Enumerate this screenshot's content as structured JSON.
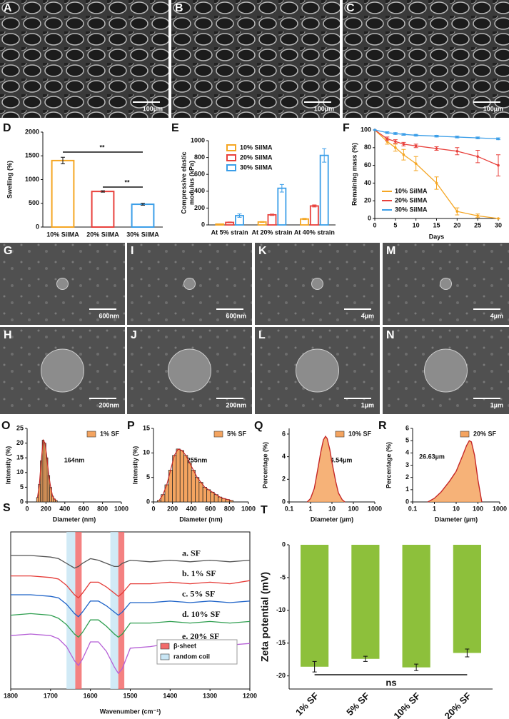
{
  "images": [
    {
      "label": "A",
      "scale": "100µm"
    },
    {
      "label": "B",
      "scale": "100µm"
    },
    {
      "label": "C",
      "scale": "100µm"
    },
    {
      "label": "G",
      "scale": "600nm"
    },
    {
      "label": "I",
      "scale": "600nm"
    },
    {
      "label": "K",
      "scale": "4µm"
    },
    {
      "label": "M",
      "scale": "4µm"
    },
    {
      "label": "H",
      "scale": "200nm"
    },
    {
      "label": "J",
      "scale": "200nm"
    },
    {
      "label": "L",
      "scale": "1µm"
    },
    {
      "label": "N",
      "scale": "1µm"
    }
  ],
  "chart_data": [
    {
      "type": "bar",
      "label": "D",
      "ylabel": "Swelling (%)",
      "categories": [
        "10% SilMA",
        "20% SilMA",
        "30% SilMA"
      ],
      "values": [
        1400,
        750,
        480
      ],
      "errors": [
        70,
        15,
        20
      ],
      "colors": [
        "#f5a623",
        "#e8413c",
        "#3b9ee8"
      ],
      "filled": false,
      "ylim": [
        0,
        2000
      ],
      "yticks": [
        0,
        500,
        1000,
        1500,
        2000
      ],
      "annotations": [
        "**",
        "**"
      ]
    },
    {
      "type": "grouped_bar",
      "label": "E",
      "ylabel": [
        "Compressive elastic",
        "modulus (kPa)"
      ],
      "categories": [
        "At 5% strain",
        "At 20% strain",
        "At 40% strain"
      ],
      "series": [
        {
          "name": "10% SilMA",
          "color": "#f5a623",
          "values": [
            10,
            35,
            70
          ],
          "errors": [
            3,
            5,
            8
          ]
        },
        {
          "name": "20% SilMA",
          "color": "#e8413c",
          "values": [
            30,
            120,
            225
          ],
          "errors": [
            5,
            8,
            12
          ]
        },
        {
          "name": "30% SilMA",
          "color": "#3b9ee8",
          "values": [
            110,
            435,
            825
          ],
          "errors": [
            20,
            45,
            80
          ]
        }
      ],
      "ylim": [
        0,
        1000
      ],
      "yticks": [
        0,
        200,
        400,
        600,
        800,
        1000
      ]
    },
    {
      "type": "line",
      "label": "F",
      "ylabel": "Remaining mass (%)",
      "xlabel": "Days",
      "x": [
        0,
        3,
        5,
        7,
        10,
        15,
        20,
        25,
        30
      ],
      "series": [
        {
          "name": "10% SilMA",
          "color": "#f5a623",
          "values": [
            100,
            87,
            80,
            72,
            62,
            40,
            8,
            3,
            0
          ],
          "errors": [
            0,
            3,
            4,
            6,
            8,
            7,
            4,
            2,
            0
          ]
        },
        {
          "name": "20% SilMA",
          "color": "#e8413c",
          "values": [
            100,
            90,
            87,
            84,
            82,
            79,
            76,
            70,
            60
          ],
          "errors": [
            0,
            2,
            2,
            2,
            2,
            2,
            4,
            7,
            12
          ]
        },
        {
          "name": "30% SilMA",
          "color": "#3b9ee8",
          "values": [
            100,
            97,
            96,
            95,
            94,
            93,
            92,
            91,
            90
          ],
          "errors": [
            0,
            1,
            1,
            1,
            1,
            1,
            1,
            1,
            1
          ]
        }
      ],
      "xlim": [
        0,
        30
      ],
      "xticks": [
        0,
        5,
        10,
        15,
        20,
        25,
        30
      ],
      "ylim": [
        0,
        100
      ],
      "yticks": [
        0,
        20,
        40,
        60,
        80,
        100
      ]
    },
    {
      "type": "histogram",
      "label": "O",
      "name": "1% SF",
      "color": "#f4a460",
      "ylabel": "Intensity (%)",
      "xlabel": "Diameter (nm)",
      "bins": [
        100,
        120,
        140,
        160,
        180,
        200,
        220,
        240,
        260,
        280,
        300,
        320
      ],
      "counts": [
        1.5,
        6,
        14,
        21,
        20,
        15,
        9,
        5,
        2,
        1,
        0.5
      ],
      "xlim": [
        0,
        1000
      ],
      "xticks": [
        0,
        200,
        400,
        600,
        800,
        1000
      ],
      "ylim": [
        0,
        25
      ],
      "yticks": [
        0,
        5,
        10,
        15,
        20,
        25
      ],
      "annotations": [
        "164nm"
      ]
    },
    {
      "type": "histogram",
      "label": "P",
      "name": "5% SF",
      "color": "#f4a460",
      "ylabel": "Intensity (%)",
      "xlabel": "Diameter (nm)",
      "bins": [
        40,
        80,
        120,
        160,
        200,
        240,
        280,
        320,
        360,
        400,
        440,
        480,
        520,
        560,
        600,
        640,
        680,
        720,
        760,
        800,
        840
      ],
      "counts": [
        0.3,
        1.5,
        3.5,
        6.5,
        9.5,
        10.8,
        10.5,
        9.5,
        8,
        6.5,
        5,
        4,
        3,
        2.5,
        2,
        1.5,
        1,
        0.7,
        0.5,
        0.3
      ],
      "xlim": [
        0,
        1000
      ],
      "xticks": [
        0,
        200,
        400,
        600,
        800,
        1000
      ],
      "ylim": [
        0,
        15
      ],
      "yticks": [
        0,
        5,
        10,
        15
      ],
      "annotations": [
        "255nm"
      ]
    },
    {
      "type": "area",
      "label": "Q",
      "name": "10% SF",
      "color": "#f4a460",
      "ylabel": "Percentage (%)",
      "xlabel": "Diameter (µm)",
      "log_x": true,
      "x": [
        0.7,
        1,
        1.5,
        2,
        3,
        4,
        5,
        6,
        8,
        10,
        15,
        20,
        30,
        40
      ],
      "values": [
        0,
        0.3,
        1.2,
        2.5,
        4.4,
        5.5,
        5.8,
        5.6,
        4.6,
        3.5,
        1.8,
        0.8,
        0.2,
        0
      ],
      "xlim": [
        0.1,
        1000
      ],
      "xticks": [
        0.1,
        1,
        10,
        100,
        1000
      ],
      "ylim": [
        0,
        6.5
      ],
      "yticks": [
        0,
        2,
        4,
        6
      ],
      "annotations": [
        "4.54µm"
      ]
    },
    {
      "type": "area",
      "label": "R",
      "name": "20% SF",
      "color": "#f4a460",
      "ylabel": "Percentage (%)",
      "xlabel": "Diameter (µm)",
      "log_x": true,
      "x": [
        0.5,
        1,
        2,
        3,
        5,
        10,
        20,
        30,
        40,
        50,
        70,
        100,
        150
      ],
      "values": [
        0,
        0.3,
        0.8,
        1.2,
        1.7,
        2.5,
        3.8,
        4.6,
        5,
        4.9,
        3.8,
        1.8,
        0
      ],
      "xlim": [
        0.1,
        1000
      ],
      "xticks": [
        0.1,
        1,
        10,
        100,
        1000
      ],
      "ylim": [
        0,
        6
      ],
      "yticks": [
        0,
        1,
        2,
        3,
        4,
        5,
        6
      ],
      "annotations": [
        "26.63µm"
      ]
    },
    {
      "type": "line",
      "label": "S",
      "xlabel": "Wavenumber (cm⁻¹)",
      "x": [
        1800,
        1750,
        1700,
        1680,
        1660,
        1640,
        1630,
        1620,
        1600,
        1580,
        1560,
        1540,
        1530,
        1520,
        1500,
        1450,
        1400,
        1350,
        1300,
        1250,
        1200
      ],
      "series": [
        {
          "name": "a. SF",
          "color": "#555555",
          "values": [
            85,
            85,
            84,
            83,
            80,
            77,
            78,
            80,
            83,
            82,
            80,
            78,
            78,
            80,
            82,
            81,
            82,
            81,
            82,
            81,
            82
          ]
        },
        {
          "name": "b. 1% SF",
          "color": "#e53935",
          "values": [
            72,
            72,
            71,
            70,
            66,
            60,
            58,
            61,
            68,
            68,
            65,
            61,
            59,
            61,
            67,
            67,
            68,
            67,
            68,
            67,
            69
          ]
        },
        {
          "name": "c. 5% SF",
          "color": "#1e63c8",
          "values": [
            60,
            60,
            59,
            58,
            54,
            48,
            46,
            49,
            56,
            56,
            53,
            49,
            47,
            49,
            55,
            55,
            56,
            55,
            56,
            55,
            56
          ]
        },
        {
          "name": "d. 10% SF",
          "color": "#2e9e4f",
          "values": [
            47,
            48,
            47,
            45,
            41,
            35,
            33,
            36,
            44,
            44,
            40,
            35,
            33,
            35,
            42,
            42,
            43,
            42,
            43,
            42,
            43
          ]
        },
        {
          "name": "e. 20% SF",
          "color": "#b55fd6",
          "values": [
            34,
            35,
            34,
            32,
            27,
            18,
            15,
            19,
            30,
            30,
            24,
            14,
            10,
            13,
            26,
            27,
            29,
            28,
            29,
            28,
            29
          ]
        }
      ],
      "bands": [
        {
          "name": "β-sheet",
          "color": "#f26b6b",
          "ranges": [
            [
              1638,
              1622
            ],
            [
              1530,
              1515
            ]
          ]
        },
        {
          "name": "random coil",
          "color": "#c9e6f5",
          "ranges": [
            [
              1660,
              1638
            ],
            [
              1550,
              1530
            ]
          ]
        }
      ],
      "xlim": [
        1800,
        1200
      ],
      "xticks": [
        1800,
        1700,
        1600,
        1500,
        1400,
        1300,
        1200
      ],
      "ylim": [
        0,
        100
      ]
    },
    {
      "type": "bar",
      "label": "T",
      "ylabel": "Zeta potential (mV)",
      "categories": [
        "1% SF",
        "5% SF",
        "10% SF",
        "20% SF"
      ],
      "values": [
        -18.6,
        -17.4,
        -18.7,
        -16.5
      ],
      "errors": [
        0.8,
        0.4,
        0.5,
        0.6
      ],
      "colors": [
        "#8dc03b",
        "#8dc03b",
        "#8dc03b",
        "#8dc03b"
      ],
      "filled": true,
      "xtick_rotation": -45,
      "ylim": [
        -22,
        0
      ],
      "yticks": [
        0,
        -5,
        -10,
        -15,
        -20
      ],
      "annotations": [
        "ns"
      ]
    }
  ]
}
